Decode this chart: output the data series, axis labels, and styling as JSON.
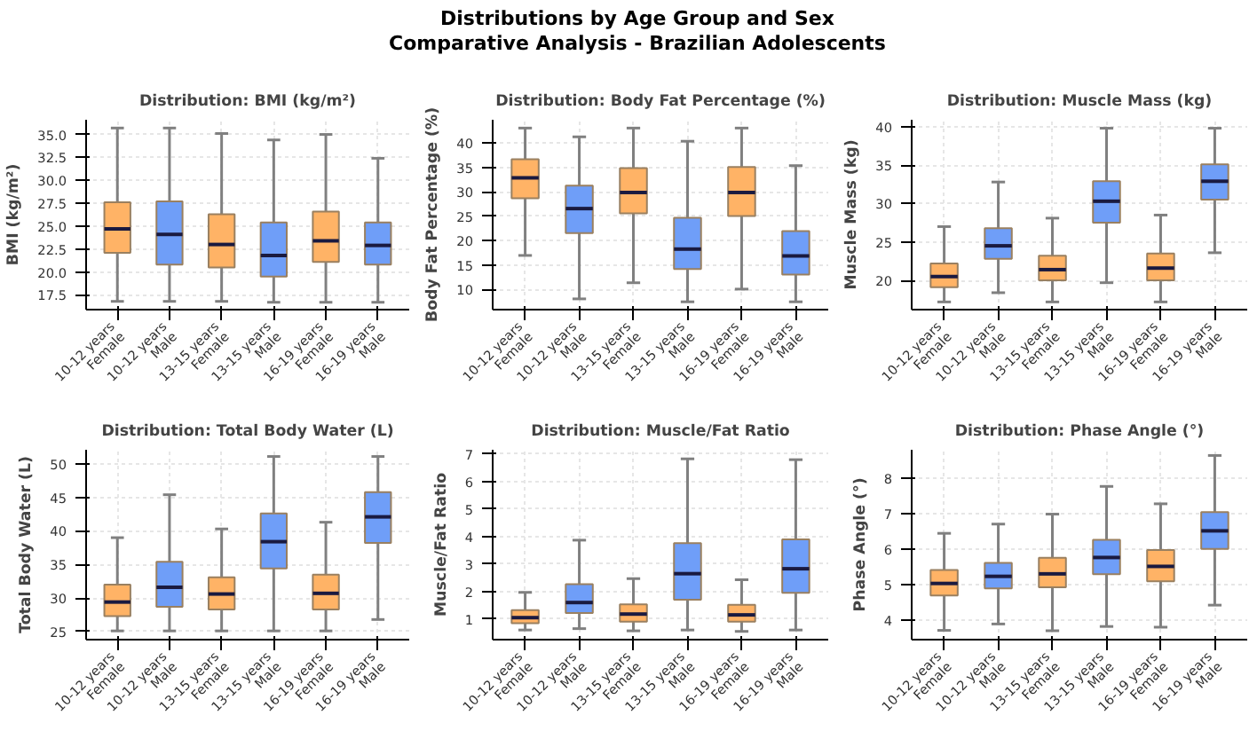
{
  "chart_data": [
    {
      "type": "box",
      "title": "Distribution: BMI (kg/m²)",
      "ylabel": "BMI (kg/m²)",
      "annotations": [
        "Distributions by Age Group and Sex",
        "Comparative Analysis - Brazilian Adolescents"
      ],
      "grid": true,
      "categories": [
        "10-12 years\nFemale",
        "10-12 years\nMale",
        "13-15 years\nFemale",
        "13-15 years\nMale",
        "16-19 years\nFemale",
        "16-19 years\nMale"
      ],
      "colors": [
        "#ffb366",
        "#6f9ef8",
        "#ffb366",
        "#6f9ef8",
        "#ffb366",
        "#6f9ef8"
      ],
      "ylim": [
        15.9,
        36.6
      ],
      "yticks": [
        {
          "value": 17.5,
          "label": "17.5"
        },
        {
          "value": 20,
          "label": "20.0"
        },
        {
          "value": 22.5,
          "label": "22.5"
        },
        {
          "value": 25,
          "label": "25.0"
        },
        {
          "value": 27.5,
          "label": "27.5"
        },
        {
          "value": 30,
          "label": "30.0"
        },
        {
          "value": 32.5,
          "label": "32.5"
        },
        {
          "value": 35,
          "label": "35.0"
        }
      ],
      "boxes": [
        {
          "low": 16.8,
          "q1": 22.1,
          "median": 24.7,
          "q3": 27.6,
          "high": 35.7
        },
        {
          "low": 16.8,
          "q1": 20.8,
          "median": 24.1,
          "q3": 27.7,
          "high": 35.7
        },
        {
          "low": 16.8,
          "q1": 20.5,
          "median": 23.0,
          "q3": 26.3,
          "high": 35.1
        },
        {
          "low": 16.7,
          "q1": 19.5,
          "median": 21.8,
          "q3": 25.4,
          "high": 34.4
        },
        {
          "low": 16.7,
          "q1": 21.1,
          "median": 23.4,
          "q3": 26.6,
          "high": 35.0
        },
        {
          "low": 16.7,
          "q1": 20.8,
          "median": 22.9,
          "q3": 25.4,
          "high": 32.4
        }
      ]
    },
    {
      "type": "box",
      "title": "Distribution: Body Fat Percentage (%)",
      "ylabel": "Body Fat Percentage (%)",
      "grid": true,
      "categories": [
        "10-12 years\nFemale",
        "10-12 years\nMale",
        "13-15 years\nFemale",
        "13-15 years\nMale",
        "16-19 years\nFemale",
        "16-19 years\nMale"
      ],
      "colors": [
        "#ffb366",
        "#6f9ef8",
        "#ffb366",
        "#6f9ef8",
        "#ffb366",
        "#6f9ef8"
      ],
      "ylim": [
        5.9,
        44.8
      ],
      "yticks": [
        10,
        15,
        20,
        25,
        30,
        35,
        40
      ],
      "boxes": [
        {
          "low": 17.0,
          "q1": 28.7,
          "median": 32.9,
          "q3": 36.7,
          "high": 43.1
        },
        {
          "low": 8.1,
          "q1": 21.6,
          "median": 26.6,
          "q3": 31.3,
          "high": 41.3
        },
        {
          "low": 11.4,
          "q1": 25.6,
          "median": 29.9,
          "q3": 34.9,
          "high": 43.1
        },
        {
          "low": 7.5,
          "q1": 14.2,
          "median": 18.3,
          "q3": 24.7,
          "high": 40.4
        },
        {
          "low": 10.1,
          "q1": 25.1,
          "median": 29.9,
          "q3": 35.1,
          "high": 43.1
        },
        {
          "low": 7.5,
          "q1": 13.1,
          "median": 16.9,
          "q3": 22.0,
          "high": 35.4
        }
      ]
    },
    {
      "type": "box",
      "title": "Distribution: Muscle Mass (kg)",
      "ylabel": "Muscle Mass (kg)",
      "grid": true,
      "categories": [
        "10-12 years\nFemale",
        "10-12 years\nMale",
        "13-15 years\nFemale",
        "13-15 years\nMale",
        "16-19 years\nFemale",
        "16-19 years\nMale"
      ],
      "colors": [
        "#ffb366",
        "#6f9ef8",
        "#ffb366",
        "#6f9ef8",
        "#ffb366",
        "#6f9ef8"
      ],
      "ylim": [
        16.2,
        40.9
      ],
      "yticks": [
        20,
        25,
        30,
        35,
        40
      ],
      "boxes": [
        {
          "low": 17.2,
          "q1": 19.1,
          "median": 20.5,
          "q3": 22.2,
          "high": 27.0
        },
        {
          "low": 18.4,
          "q1": 22.8,
          "median": 24.5,
          "q3": 26.8,
          "high": 32.8
        },
        {
          "low": 17.2,
          "q1": 20.0,
          "median": 21.4,
          "q3": 23.2,
          "high": 28.1
        },
        {
          "low": 19.7,
          "q1": 27.5,
          "median": 30.3,
          "q3": 32.9,
          "high": 39.8
        },
        {
          "low": 17.2,
          "q1": 20.0,
          "median": 21.6,
          "q3": 23.5,
          "high": 28.5
        },
        {
          "low": 23.6,
          "q1": 30.5,
          "median": 32.9,
          "q3": 35.1,
          "high": 39.8
        }
      ]
    },
    {
      "type": "box",
      "title": "Distribution: Total Body Water (L)",
      "ylabel": "Total Body Water (L)",
      "grid": true,
      "categories": [
        "10-12 years\nFemale",
        "10-12 years\nMale",
        "13-15 years\nFemale",
        "13-15 years\nMale",
        "16-19 years\nFemale",
        "16-19 years\nMale"
      ],
      "colors": [
        "#ffb366",
        "#6f9ef8",
        "#ffb366",
        "#6f9ef8",
        "#ffb366",
        "#6f9ef8"
      ],
      "ylim": [
        23.8,
        52.1
      ],
      "yticks": [
        25,
        30,
        35,
        40,
        45,
        50
      ],
      "boxes": [
        {
          "low": 25.1,
          "q1": 27.3,
          "median": 29.4,
          "q3": 32.0,
          "high": 39.0
        },
        {
          "low": 25.1,
          "q1": 28.7,
          "median": 31.6,
          "q3": 35.4,
          "high": 45.4
        },
        {
          "low": 25.1,
          "q1": 28.3,
          "median": 30.6,
          "q3": 33.1,
          "high": 40.3
        },
        {
          "low": 25.1,
          "q1": 34.4,
          "median": 38.4,
          "q3": 42.6,
          "high": 51.1
        },
        {
          "low": 25.1,
          "q1": 28.3,
          "median": 30.7,
          "q3": 33.5,
          "high": 41.3
        },
        {
          "low": 26.8,
          "q1": 38.2,
          "median": 42.1,
          "q3": 45.8,
          "high": 51.1
        }
      ]
    },
    {
      "type": "box",
      "title": "Distribution: Muscle/Fat Ratio",
      "ylabel": "Muscle/Fat Ratio",
      "grid": true,
      "categories": [
        "10-12 years\nFemale",
        "10-12 years\nMale",
        "13-15 years\nFemale",
        "13-15 years\nMale",
        "16-19 years\nFemale",
        "16-19 years\nMale"
      ],
      "colors": [
        "#ffb366",
        "#6f9ef8",
        "#ffb366",
        "#6f9ef8",
        "#ffb366",
        "#6f9ef8"
      ],
      "ylim": [
        0.25,
        7.16
      ],
      "yticks": [
        1,
        2,
        3,
        4,
        5,
        6,
        7
      ],
      "boxes": [
        {
          "low": 0.6,
          "q1": 0.85,
          "median": 1.05,
          "q3": 1.32,
          "high": 1.97
        },
        {
          "low": 0.65,
          "q1": 1.22,
          "median": 1.6,
          "q3": 2.27,
          "high": 3.87
        },
        {
          "low": 0.57,
          "q1": 0.9,
          "median": 1.18,
          "q3": 1.53,
          "high": 2.47
        },
        {
          "low": 0.6,
          "q1": 1.7,
          "median": 2.65,
          "q3": 3.76,
          "high": 6.83
        },
        {
          "low": 0.55,
          "q1": 0.9,
          "median": 1.15,
          "q3": 1.52,
          "high": 2.43
        },
        {
          "low": 0.6,
          "q1": 1.95,
          "median": 2.83,
          "q3": 3.9,
          "high": 6.8
        }
      ]
    },
    {
      "type": "box",
      "title": "Distribution: Phase Angle (°)",
      "ylabel": "Phase Angle (°)",
      "grid": true,
      "categories": [
        "10-12 years\nFemale",
        "10-12 years\nMale",
        "13-15 years\nFemale",
        "13-15 years\nMale",
        "16-19 years\nFemale",
        "16-19 years\nMale"
      ],
      "colors": [
        "#ffb366",
        "#6f9ef8",
        "#ffb366",
        "#6f9ef8",
        "#ffb366",
        "#6f9ef8"
      ],
      "ylim": [
        3.46,
        8.8
      ],
      "yticks": [
        4,
        5,
        6,
        7,
        8
      ],
      "boxes": [
        {
          "low": 3.72,
          "q1": 4.7,
          "median": 5.04,
          "q3": 5.42,
          "high": 6.45
        },
        {
          "low": 3.9,
          "q1": 4.9,
          "median": 5.24,
          "q3": 5.62,
          "high": 6.71
        },
        {
          "low": 3.71,
          "q1": 4.93,
          "median": 5.31,
          "q3": 5.76,
          "high": 6.99
        },
        {
          "low": 3.83,
          "q1": 5.3,
          "median": 5.77,
          "q3": 6.27,
          "high": 7.77
        },
        {
          "low": 3.81,
          "q1": 5.1,
          "median": 5.52,
          "q3": 5.98,
          "high": 7.28
        },
        {
          "low": 4.43,
          "q1": 6.01,
          "median": 6.52,
          "q3": 7.05,
          "high": 8.64
        }
      ]
    }
  ]
}
